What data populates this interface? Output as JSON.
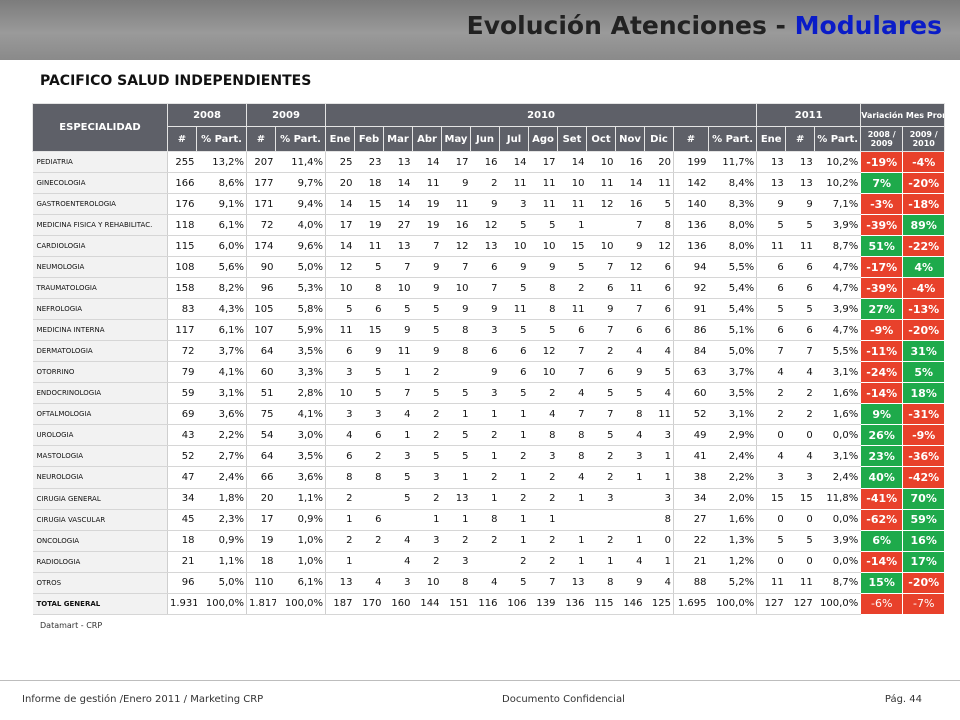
{
  "title": {
    "main": "Evolución Atenciones - ",
    "accent": "Modulares"
  },
  "subtitle": "PACIFICO SALUD INDEPENDIENTES",
  "colors": {
    "header_bar": "#8a8a8a",
    "title_accent": "#0a1cc8",
    "table_header": "#5e6068",
    "negative": "#e8412b",
    "positive": "#1eaa4b"
  },
  "table": {
    "especialidad_label": "ESPECIALIDAD",
    "years": {
      "y2008": "2008",
      "y2009": "2009",
      "y2010": "2010",
      "y2011": "2011"
    },
    "variacion_label": "Variación Mes Prom.",
    "var_cols": [
      "2008 / 2009",
      "2009 / 2010"
    ],
    "count_label": "#",
    "share_label": "% Part.",
    "months_2010": [
      "Ene",
      "Feb",
      "Mar",
      "Abr",
      "May",
      "Jun",
      "Jul",
      "Ago",
      "Set",
      "Oct",
      "Nov",
      "Dic"
    ],
    "month_2011": "Ene",
    "rows": [
      {
        "name": "PEDIATRIA",
        "v2008": "255",
        "p2008": "13,2%",
        "v2009": "207",
        "p2009": "11,4%",
        "m": [
          "25",
          "23",
          "13",
          "14",
          "17",
          "16",
          "14",
          "17",
          "14",
          "10",
          "16",
          "20"
        ],
        "v2010": "199",
        "p2010": "11,7%",
        "ene2011": "13",
        "v2011": "13",
        "p2011": "10,2%",
        "var1": "-19%",
        "var2": "-4%"
      },
      {
        "name": "GINECOLOGIA",
        "v2008": "166",
        "p2008": "8,6%",
        "v2009": "177",
        "p2009": "9,7%",
        "m": [
          "20",
          "18",
          "14",
          "11",
          "9",
          "2",
          "11",
          "11",
          "10",
          "11",
          "14",
          "11"
        ],
        "v2010": "142",
        "p2010": "8,4%",
        "ene2011": "13",
        "v2011": "13",
        "p2011": "10,2%",
        "var1": "7%",
        "var2": "-20%"
      },
      {
        "name": "GASTROENTEROLOGIA",
        "v2008": "176",
        "p2008": "9,1%",
        "v2009": "171",
        "p2009": "9,4%",
        "m": [
          "14",
          "15",
          "14",
          "19",
          "11",
          "9",
          "3",
          "11",
          "11",
          "12",
          "16",
          "5"
        ],
        "v2010": "140",
        "p2010": "8,3%",
        "ene2011": "9",
        "v2011": "9",
        "p2011": "7,1%",
        "var1": "-3%",
        "var2": "-18%"
      },
      {
        "name": "MEDICINA FISICA Y REHABILITAC.",
        "v2008": "118",
        "p2008": "6,1%",
        "v2009": "72",
        "p2009": "4,0%",
        "m": [
          "17",
          "19",
          "27",
          "19",
          "16",
          "12",
          "5",
          "5",
          "1",
          "",
          "7",
          "8"
        ],
        "v2010": "136",
        "p2010": "8,0%",
        "ene2011": "5",
        "v2011": "5",
        "p2011": "3,9%",
        "var1": "-39%",
        "var2": "89%"
      },
      {
        "name": "CARDIOLOGIA",
        "v2008": "115",
        "p2008": "6,0%",
        "v2009": "174",
        "p2009": "9,6%",
        "m": [
          "14",
          "11",
          "13",
          "7",
          "12",
          "13",
          "10",
          "10",
          "15",
          "10",
          "9",
          "12"
        ],
        "v2010": "136",
        "p2010": "8,0%",
        "ene2011": "11",
        "v2011": "11",
        "p2011": "8,7%",
        "var1": "51%",
        "var2": "-22%"
      },
      {
        "name": "NEUMOLOGIA",
        "v2008": "108",
        "p2008": "5,6%",
        "v2009": "90",
        "p2009": "5,0%",
        "m": [
          "12",
          "5",
          "7",
          "9",
          "7",
          "6",
          "9",
          "9",
          "5",
          "7",
          "12",
          "6"
        ],
        "v2010": "94",
        "p2010": "5,5%",
        "ene2011": "6",
        "v2011": "6",
        "p2011": "4,7%",
        "var1": "-17%",
        "var2": "4%"
      },
      {
        "name": "TRAUMATOLOGIA",
        "v2008": "158",
        "p2008": "8,2%",
        "v2009": "96",
        "p2009": "5,3%",
        "m": [
          "10",
          "8",
          "10",
          "9",
          "10",
          "7",
          "5",
          "8",
          "2",
          "6",
          "11",
          "6"
        ],
        "v2010": "92",
        "p2010": "5,4%",
        "ene2011": "6",
        "v2011": "6",
        "p2011": "4,7%",
        "var1": "-39%",
        "var2": "-4%"
      },
      {
        "name": "NEFROLOGIA",
        "v2008": "83",
        "p2008": "4,3%",
        "v2009": "105",
        "p2009": "5,8%",
        "m": [
          "5",
          "6",
          "5",
          "5",
          "9",
          "9",
          "11",
          "8",
          "11",
          "9",
          "7",
          "6"
        ],
        "v2010": "91",
        "p2010": "5,4%",
        "ene2011": "5",
        "v2011": "5",
        "p2011": "3,9%",
        "var1": "27%",
        "var2": "-13%"
      },
      {
        "name": "MEDICINA INTERNA",
        "v2008": "117",
        "p2008": "6,1%",
        "v2009": "107",
        "p2009": "5,9%",
        "m": [
          "11",
          "15",
          "9",
          "5",
          "8",
          "3",
          "5",
          "5",
          "6",
          "7",
          "6",
          "6"
        ],
        "v2010": "86",
        "p2010": "5,1%",
        "ene2011": "6",
        "v2011": "6",
        "p2011": "4,7%",
        "var1": "-9%",
        "var2": "-20%"
      },
      {
        "name": "DERMATOLOGIA",
        "v2008": "72",
        "p2008": "3,7%",
        "v2009": "64",
        "p2009": "3,5%",
        "m": [
          "6",
          "9",
          "11",
          "9",
          "8",
          "6",
          "6",
          "12",
          "7",
          "2",
          "4",
          "4"
        ],
        "v2010": "84",
        "p2010": "5,0%",
        "ene2011": "7",
        "v2011": "7",
        "p2011": "5,5%",
        "var1": "-11%",
        "var2": "31%"
      },
      {
        "name": "OTORRINO",
        "v2008": "79",
        "p2008": "4,1%",
        "v2009": "60",
        "p2009": "3,3%",
        "m": [
          "3",
          "5",
          "1",
          "2",
          "",
          "9",
          "6",
          "10",
          "7",
          "6",
          "9",
          "5"
        ],
        "v2010": "63",
        "p2010": "3,7%",
        "ene2011": "4",
        "v2011": "4",
        "p2011": "3,1%",
        "var1": "-24%",
        "var2": "5%"
      },
      {
        "name": "ENDOCRINOLOGIA",
        "v2008": "59",
        "p2008": "3,1%",
        "v2009": "51",
        "p2009": "2,8%",
        "m": [
          "10",
          "5",
          "7",
          "5",
          "5",
          "3",
          "5",
          "2",
          "4",
          "5",
          "5",
          "4"
        ],
        "v2010": "60",
        "p2010": "3,5%",
        "ene2011": "2",
        "v2011": "2",
        "p2011": "1,6%",
        "var1": "-14%",
        "var2": "18%"
      },
      {
        "name": "OFTALMOLOGIA",
        "v2008": "69",
        "p2008": "3,6%",
        "v2009": "75",
        "p2009": "4,1%",
        "m": [
          "3",
          "3",
          "4",
          "2",
          "1",
          "1",
          "1",
          "4",
          "7",
          "7",
          "8",
          "11"
        ],
        "v2010": "52",
        "p2010": "3,1%",
        "ene2011": "2",
        "v2011": "2",
        "p2011": "1,6%",
        "var1": "9%",
        "var2": "-31%"
      },
      {
        "name": "UROLOGIA",
        "v2008": "43",
        "p2008": "2,2%",
        "v2009": "54",
        "p2009": "3,0%",
        "m": [
          "4",
          "6",
          "1",
          "2",
          "5",
          "2",
          "1",
          "8",
          "8",
          "5",
          "4",
          "3"
        ],
        "v2010": "49",
        "p2010": "2,9%",
        "ene2011": "0",
        "v2011": "0",
        "p2011": "0,0%",
        "var1": "26%",
        "var2": "-9%"
      },
      {
        "name": "MASTOLOGIA",
        "v2008": "52",
        "p2008": "2,7%",
        "v2009": "64",
        "p2009": "3,5%",
        "m": [
          "6",
          "2",
          "3",
          "5",
          "5",
          "1",
          "2",
          "3",
          "8",
          "2",
          "3",
          "1"
        ],
        "v2010": "41",
        "p2010": "2,4%",
        "ene2011": "4",
        "v2011": "4",
        "p2011": "3,1%",
        "var1": "23%",
        "var2": "-36%"
      },
      {
        "name": "NEUROLOGIA",
        "v2008": "47",
        "p2008": "2,4%",
        "v2009": "66",
        "p2009": "3,6%",
        "m": [
          "8",
          "8",
          "5",
          "3",
          "1",
          "2",
          "1",
          "2",
          "4",
          "2",
          "1",
          "1"
        ],
        "v2010": "38",
        "p2010": "2,2%",
        "ene2011": "3",
        "v2011": "3",
        "p2011": "2,4%",
        "var1": "40%",
        "var2": "-42%"
      },
      {
        "name": "CIRUGIA GENERAL",
        "v2008": "34",
        "p2008": "1,8%",
        "v2009": "20",
        "p2009": "1,1%",
        "m": [
          "2",
          "",
          "5",
          "2",
          "13",
          "1",
          "2",
          "2",
          "1",
          "3",
          "",
          "3"
        ],
        "v2010": "34",
        "p2010": "2,0%",
        "ene2011": "15",
        "v2011": "15",
        "p2011": "11,8%",
        "var1": "-41%",
        "var2": "70%"
      },
      {
        "name": "CIRUGIA VASCULAR",
        "v2008": "45",
        "p2008": "2,3%",
        "v2009": "17",
        "p2009": "0,9%",
        "m": [
          "1",
          "6",
          "",
          "1",
          "1",
          "8",
          "1",
          "1",
          "",
          "",
          "",
          "8"
        ],
        "v2010": "27",
        "p2010": "1,6%",
        "ene2011": "0",
        "v2011": "0",
        "p2011": "0,0%",
        "var1": "-62%",
        "var2": "59%"
      },
      {
        "name": "ONCOLOGIA",
        "v2008": "18",
        "p2008": "0,9%",
        "v2009": "19",
        "p2009": "1,0%",
        "m": [
          "2",
          "2",
          "4",
          "3",
          "2",
          "2",
          "1",
          "2",
          "1",
          "2",
          "1",
          "0"
        ],
        "v2010": "22",
        "p2010": "1,3%",
        "ene2011": "5",
        "v2011": "5",
        "p2011": "3,9%",
        "var1": "6%",
        "var2": "16%"
      },
      {
        "name": "RADIOLOGIA",
        "v2008": "21",
        "p2008": "1,1%",
        "v2009": "18",
        "p2009": "1,0%",
        "m": [
          "1",
          "",
          "4",
          "2",
          "3",
          "",
          "2",
          "2",
          "1",
          "1",
          "4",
          "1"
        ],
        "v2010": "21",
        "p2010": "1,2%",
        "ene2011": "0",
        "v2011": "0",
        "p2011": "0,0%",
        "var1": "-14%",
        "var2": "17%"
      },
      {
        "name": "OTROS",
        "v2008": "96",
        "p2008": "5,0%",
        "v2009": "110",
        "p2009": "6,1%",
        "m": [
          "13",
          "4",
          "3",
          "10",
          "8",
          "4",
          "5",
          "7",
          "13",
          "8",
          "9",
          "4"
        ],
        "v2010": "88",
        "p2010": "5,2%",
        "ene2011": "11",
        "v2011": "11",
        "p2011": "8,7%",
        "var1": "15%",
        "var2": "-20%"
      }
    ],
    "total": {
      "name": "TOTAL GENERAL",
      "v2008": "1.931",
      "p2008": "100,0%",
      "v2009": "1.817",
      "p2009": "100,0%",
      "m": [
        "187",
        "170",
        "160",
        "144",
        "151",
        "116",
        "106",
        "139",
        "136",
        "115",
        "146",
        "125"
      ],
      "v2010": "1.695",
      "p2010": "100,0%",
      "ene2011": "127",
      "v2011": "127",
      "p2011": "100,0%",
      "var1": "-6%",
      "var2": "-7%"
    }
  },
  "source_note": "Datamart - CRP",
  "footer": {
    "left": "Informe de gestión /Enero 2011 / Marketing CRP",
    "center": "Documento Confidencial",
    "right": "Pág. 44"
  }
}
